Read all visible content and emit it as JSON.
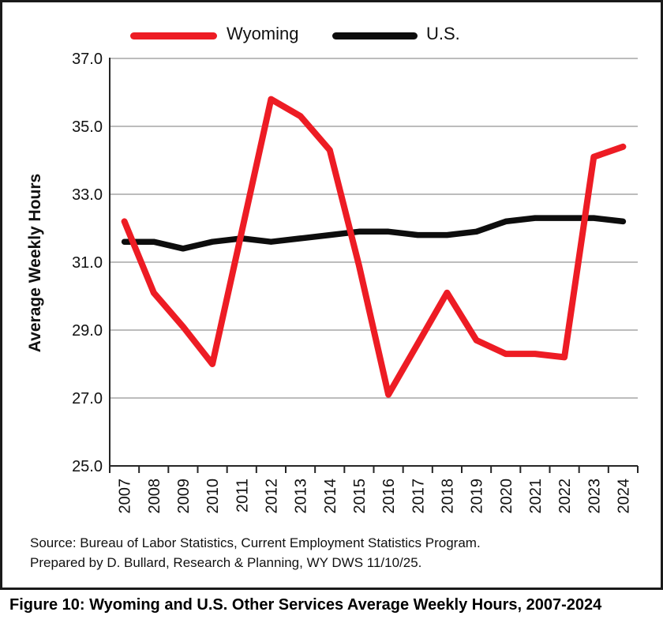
{
  "figure": {
    "caption": "Figure 10: Wyoming and U.S. Other Services Average Weekly Hours, 2007-2024",
    "source_line1": "Source: Bureau of Labor Statistics, Current Employment Statistics Program.",
    "source_line2": "Prepared by D. Bullard, Research & Planning, WY DWS 11/10/25."
  },
  "legend": {
    "wyoming": {
      "label": "Wyoming",
      "color": "#ED1C24"
    },
    "us": {
      "label": "U.S.",
      "color": "#0d0d0d"
    }
  },
  "colors": {
    "wyoming_line": "#ED1C24",
    "us_line": "#0d0d0d",
    "gridline": "#a6a6a6",
    "axis": "#262626"
  },
  "chart_data": {
    "type": "line",
    "title": "",
    "xlabel": "",
    "ylabel": "Average Weekly Hours",
    "ylim": [
      25.0,
      37.0
    ],
    "yticks": [
      25.0,
      27.0,
      29.0,
      31.0,
      33.0,
      35.0,
      37.0
    ],
    "ytick_labels": [
      "25.0",
      "27.0",
      "29.0",
      "31.0",
      "33.0",
      "35.0",
      "37.0"
    ],
    "grid": true,
    "legend_position": "top",
    "categories": [
      "2007",
      "2008",
      "2009",
      "2010",
      "2011",
      "2012",
      "2013",
      "2014",
      "2015",
      "2016",
      "2017",
      "2018",
      "2019",
      "2020",
      "2021",
      "2022",
      "2023",
      "2024"
    ],
    "series": [
      {
        "name": "Wyoming",
        "color": "#ED1C24",
        "values": [
          32.2,
          30.1,
          29.1,
          28.0,
          31.9,
          35.8,
          35.3,
          34.3,
          30.9,
          27.1,
          28.6,
          30.1,
          28.7,
          28.3,
          28.3,
          28.2,
          34.1,
          34.4
        ]
      },
      {
        "name": "U.S.",
        "color": "#0d0d0d",
        "values": [
          31.6,
          31.6,
          31.4,
          31.6,
          31.7,
          31.6,
          31.7,
          31.8,
          31.9,
          31.9,
          31.8,
          31.8,
          31.9,
          32.2,
          32.3,
          32.3,
          32.3,
          32.2
        ]
      }
    ]
  }
}
